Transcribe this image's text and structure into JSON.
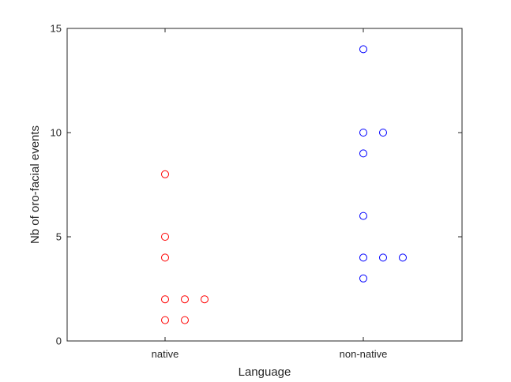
{
  "chart_data": {
    "type": "scatter",
    "xlabel": "Language",
    "ylabel": "Nb of oro-facial events",
    "categories": [
      "native",
      "non-native"
    ],
    "ylim": [
      0,
      15
    ],
    "yticks": [
      0,
      5,
      10,
      15
    ],
    "grid": false,
    "series": [
      {
        "category": "native",
        "color": "#ff0000",
        "points": [
          {
            "offset": 0,
            "y": 8
          },
          {
            "offset": 0,
            "y": 5
          },
          {
            "offset": 0,
            "y": 4
          },
          {
            "offset": 0,
            "y": 2
          },
          {
            "offset": 1,
            "y": 2
          },
          {
            "offset": 2,
            "y": 2
          },
          {
            "offset": 0,
            "y": 1
          },
          {
            "offset": 1,
            "y": 1
          }
        ]
      },
      {
        "category": "non-native",
        "color": "#0000ff",
        "points": [
          {
            "offset": 0,
            "y": 14
          },
          {
            "offset": 0,
            "y": 10
          },
          {
            "offset": 1,
            "y": 10
          },
          {
            "offset": 0,
            "y": 9
          },
          {
            "offset": 0,
            "y": 6
          },
          {
            "offset": 0,
            "y": 4
          },
          {
            "offset": 1,
            "y": 4
          },
          {
            "offset": 2,
            "y": 4
          },
          {
            "offset": 0,
            "y": 3
          }
        ]
      }
    ]
  }
}
